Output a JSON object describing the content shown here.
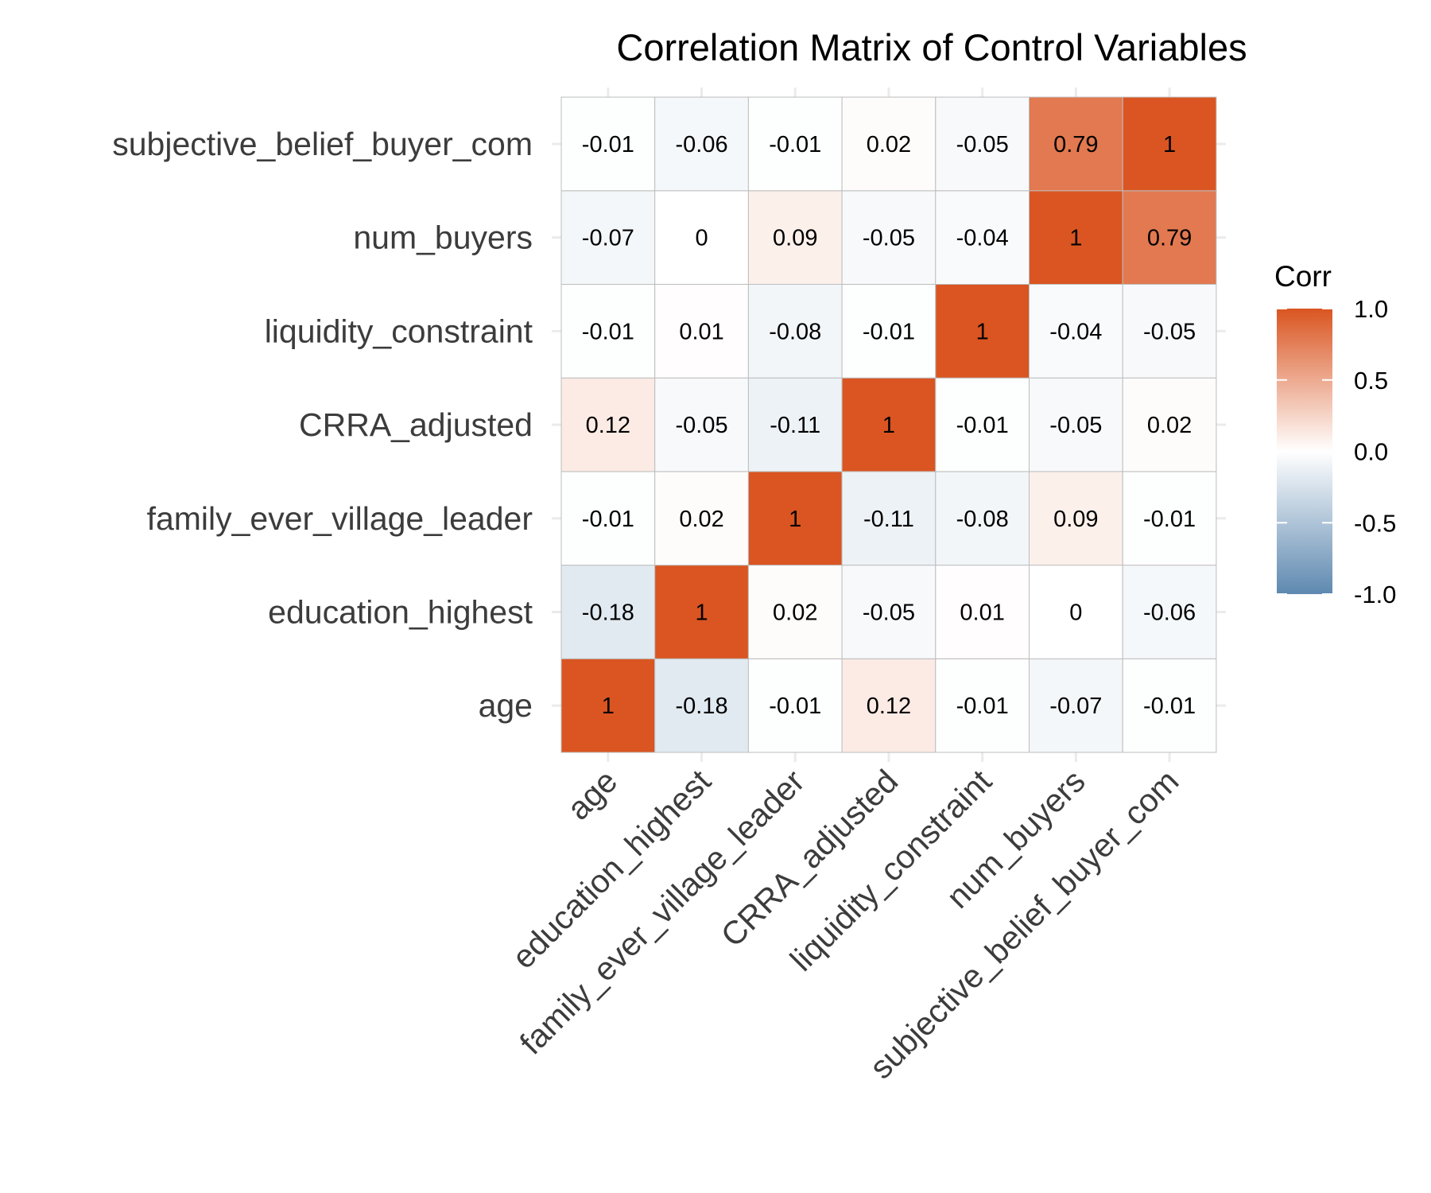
{
  "chart_data": {
    "type": "heatmap",
    "title": "Correlation Matrix of Control Variables",
    "xlabel": "",
    "ylabel": "",
    "variables": [
      "age",
      "education_highest",
      "family_ever_village_leader",
      "CRRA_adjusted",
      "liquidity_constraint",
      "num_buyers",
      "subjective_belief_buyer_com"
    ],
    "matrix": [
      [
        1,
        -0.18,
        -0.01,
        0.12,
        -0.01,
        -0.07,
        -0.01
      ],
      [
        -0.18,
        1,
        0.02,
        -0.05,
        0.01,
        0,
        -0.06
      ],
      [
        -0.01,
        0.02,
        1,
        -0.11,
        -0.08,
        0.09,
        -0.01
      ],
      [
        0.12,
        -0.05,
        -0.11,
        1,
        -0.01,
        -0.05,
        0.02
      ],
      [
        -0.01,
        0.01,
        -0.08,
        -0.01,
        1,
        -0.04,
        -0.05
      ],
      [
        -0.07,
        0,
        0.09,
        -0.05,
        -0.04,
        1,
        0.79
      ],
      [
        -0.01,
        -0.06,
        -0.01,
        0.02,
        -0.05,
        0.79,
        1
      ]
    ],
    "legend": {
      "title": "Corr",
      "placement": "right",
      "range": [
        -1,
        1
      ],
      "ticks": [
        "1.0",
        "0.5",
        "0.0",
        "-0.5",
        "-1.0"
      ],
      "colors": {
        "low": "#5E89B0",
        "mid": "#FFFFFF",
        "high": "#DA5521"
      }
    },
    "grid": true
  }
}
